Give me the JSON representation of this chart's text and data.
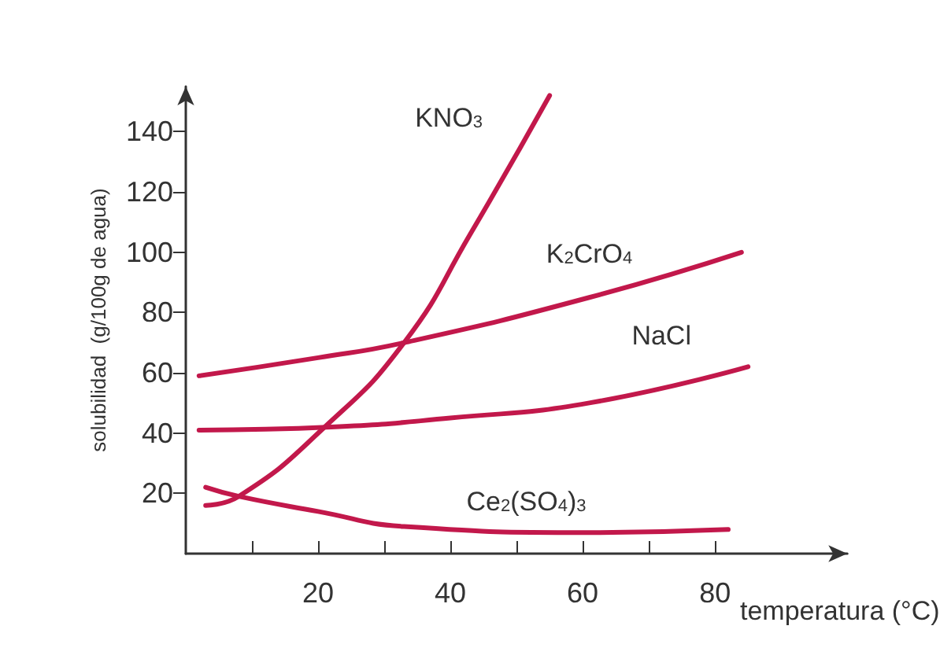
{
  "chart_data": {
    "type": "line",
    "xlabel": "temperatura (°C)",
    "ylabel": "solubilidad  (g/100g de agua)",
    "xlim": [
      0,
      100
    ],
    "ylim": [
      0,
      155
    ],
    "xticks": [
      {
        "value": 10,
        "label": null
      },
      20,
      {
        "value": 30,
        "label": null
      },
      40,
      {
        "value": 50,
        "label": null
      },
      60,
      {
        "value": 70,
        "label": null
      },
      80
    ],
    "yticks": [
      20,
      40,
      60,
      80,
      100,
      120,
      140
    ],
    "grid": false,
    "legend": false,
    "marker": "none",
    "line_style": "solid",
    "series": [
      {
        "name": "KNO$_{3}$",
        "color": "#c2184b",
        "x": [
          3,
          8,
          21,
          33,
          43,
          55
        ],
        "values": [
          16,
          19,
          42,
          70,
          106,
          152
        ]
      },
      {
        "name": "K$_{2}$CrO$_{4}$",
        "color": "#c2184b",
        "x": [
          2,
          20,
          33,
          61,
          84
        ],
        "values": [
          59,
          65,
          70,
          85,
          100
        ]
      },
      {
        "name": "NaCl",
        "color": "#c2184b",
        "x": [
          2,
          22,
          40,
          61,
          85
        ],
        "values": [
          41,
          42,
          45,
          50,
          62
        ]
      },
      {
        "name": "Ce$_{2}$(SO$_{4}$)$_{3}$",
        "color": "#c2184b",
        "x": [
          3,
          8,
          20,
          33,
          61,
          82
        ],
        "values": [
          22,
          19,
          14,
          9,
          7,
          8
        ]
      }
    ]
  }
}
